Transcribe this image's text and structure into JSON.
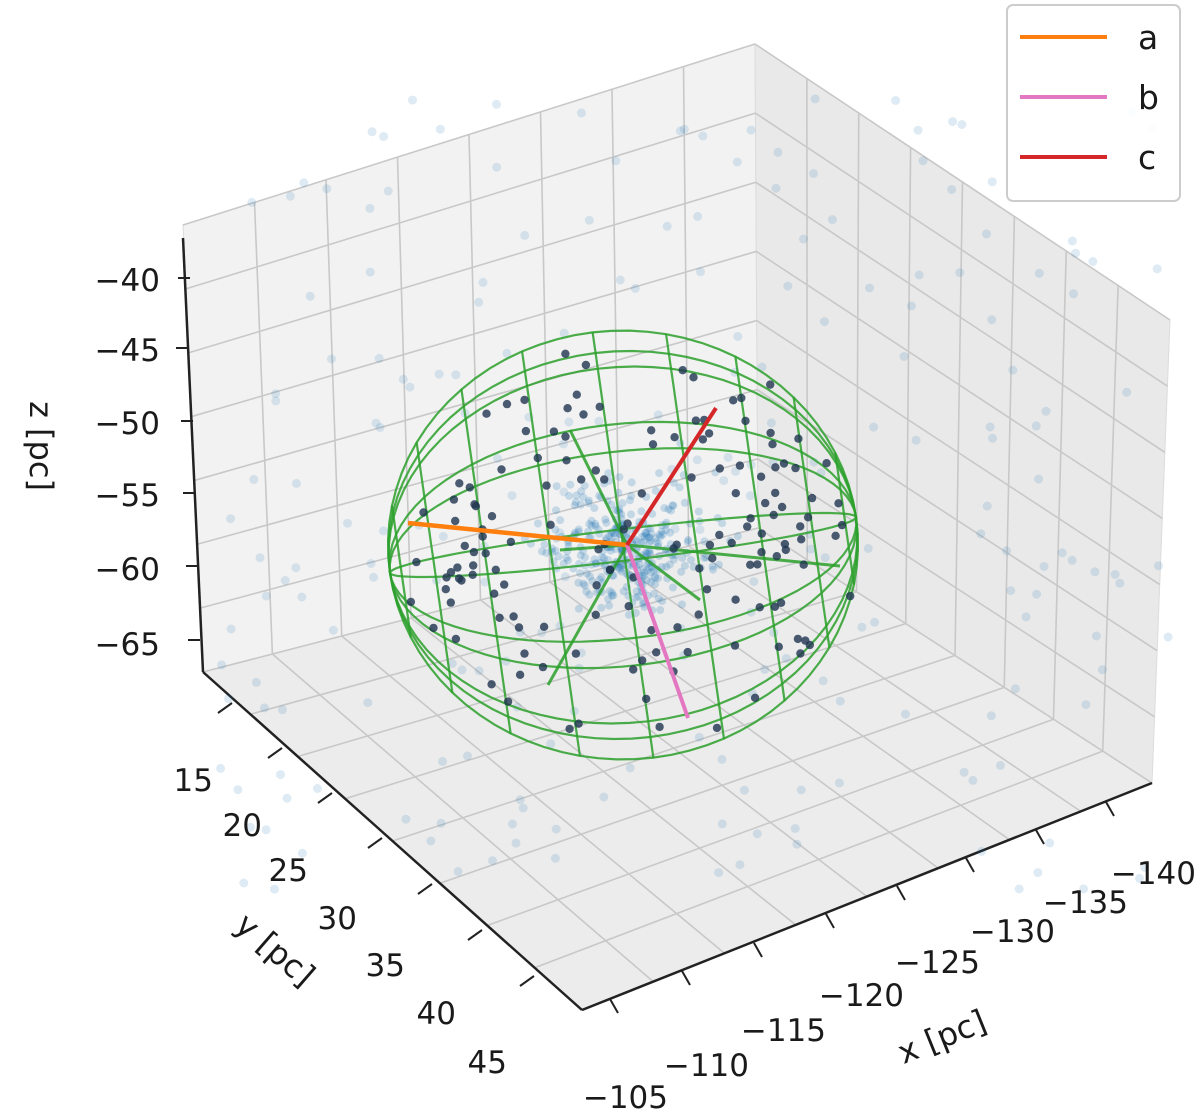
{
  "chart_data": {
    "type": "scatter",
    "projection": "3d",
    "xlabel": "x [pc]",
    "ylabel": "y [pc]",
    "zlabel": "z [pc]",
    "x_ticks": [
      "−140",
      "−135",
      "−130",
      "−125",
      "−120",
      "−115",
      "−110",
      "−105"
    ],
    "y_ticks": [
      "15",
      "20",
      "25",
      "30",
      "35",
      "40",
      "45"
    ],
    "z_ticks": [
      "−40",
      "−45",
      "−50",
      "−55",
      "−60",
      "−65"
    ],
    "grid": true,
    "legend_position": "top-right",
    "legend": [
      {
        "label": "a",
        "color": "#ff7f0e"
      },
      {
        "label": "b",
        "color": "#e377c2"
      },
      {
        "label": "c",
        "color": "#d62728"
      }
    ],
    "colors": {
      "scatter_all": "#1f77b4",
      "scatter_members": "#1f3550",
      "ellipsoid_wireframe": "#2ca02c",
      "pane": "#f2f2f2",
      "grid": "#c8c8c8"
    },
    "series": [
      {
        "name": "a",
        "kind": "semi-axis",
        "color": "#ff7f0e"
      },
      {
        "name": "b",
        "kind": "semi-axis",
        "color": "#e377c2"
      },
      {
        "name": "c",
        "kind": "semi-axis",
        "color": "#d62728"
      }
    ]
  }
}
